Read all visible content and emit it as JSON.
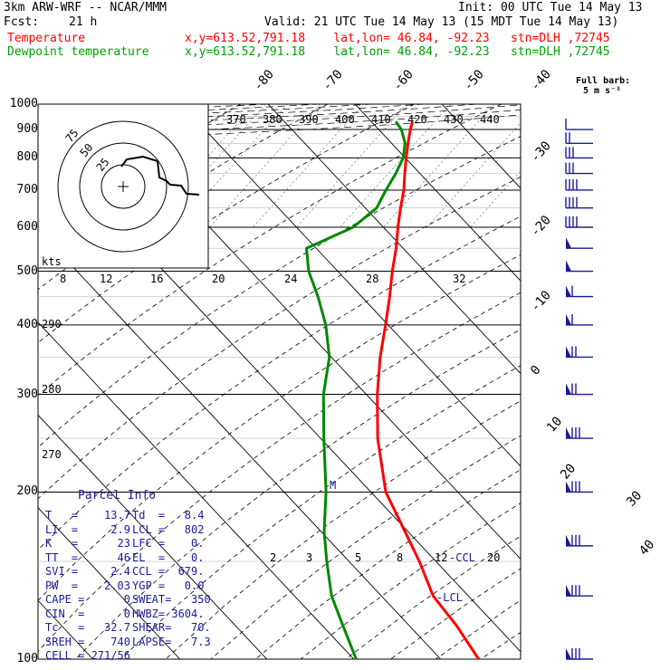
{
  "header": {
    "line1_left": "3km ARW-WRF -- NCAR/MMM",
    "line1_right": "Init: 00 UTC Tue 14 May 13",
    "fcst_label": "Fcst:",
    "fcst_value": "21 h",
    "valid": "Valid: 21 UTC Tue 14 May 13 (15 MDT Tue 14 May 13)",
    "temp_label": "Temperature",
    "dew_label": "Dewpoint temperature",
    "location": "x,y=613.52,791.18    lat,lon= 46.84, -92.23   stn=DLH ,72745"
  },
  "colors": {
    "temperature": "#ff0000",
    "dewpoint": "#008800",
    "parcel_text": "#1a1a99",
    "barbs": "#1a1a99",
    "grid": "#000000"
  },
  "pressure_labels": [
    "100",
    "200",
    "300",
    "400",
    "500",
    "600",
    "700",
    "800",
    "900",
    "1000"
  ],
  "isotherm_labels": [
    "-80",
    "-70",
    "-60",
    "-50",
    "-40",
    "-30",
    "-20",
    "-10",
    "0",
    "10",
    "20",
    "30",
    "40"
  ],
  "theta_labels": [
    "370",
    "380",
    "390",
    "400",
    "410",
    "420",
    "430",
    "440"
  ],
  "theta_low_labels": [
    "290",
    "280",
    "270"
  ],
  "mixing_ratio_top": [
    "8",
    "12",
    "16",
    "20",
    "24",
    "28",
    "32"
  ],
  "mixing_ratio_low": [
    "2",
    "3",
    "5",
    "8",
    "12",
    "20"
  ],
  "annotations": {
    "kts": "kts",
    "full_barb_1": "Full barb:",
    "full_barb_2": "5 m s⁻¹",
    "hodo_rings": [
      "75",
      "50",
      "25"
    ],
    "ccl_tag": "-CCL",
    "lcl_tag": "-LCL",
    "m_tag": "M"
  },
  "parcel_info": {
    "title": "Parcel Info",
    "rows": [
      [
        "T   =    13.7",
        "Td  =   8.4"
      ],
      [
        "LI  =     2.9",
        "LCL =   802"
      ],
      [
        "K   =      23",
        "LFC =    0."
      ],
      [
        "TT  =      46",
        "EL  =    0."
      ],
      [
        "SVI =     2.4",
        "CCL =  679."
      ],
      [
        "PW  =    2.03",
        "YGP =   0.0"
      ],
      [
        "CAPE =      0",
        "SWEAT=   350"
      ],
      [
        "CIN  =      0",
        "HWBZ= 3604."
      ],
      [
        "Tc   =   32.7",
        "SHEAR=   70."
      ],
      [
        "SREH =    740",
        "LAPSE=   7.3"
      ],
      [
        "CELL = 271/56",
        ""
      ]
    ]
  },
  "chart_data": {
    "type": "line",
    "title": "",
    "xlabel": "",
    "ylabel": "",
    "y_scale": "log-pressure (hPa), skew-T",
    "ylim": [
      1000,
      100
    ],
    "series": [
      {
        "name": "Temperature",
        "points": [
          {
            "p": 930,
            "t": 14
          },
          {
            "p": 900,
            "t": 12
          },
          {
            "p": 850,
            "t": 9
          },
          {
            "p": 800,
            "t": 6
          },
          {
            "p": 750,
            "t": 3
          },
          {
            "p": 700,
            "t": 0
          },
          {
            "p": 650,
            "t": -4
          },
          {
            "p": 600,
            "t": -8
          },
          {
            "p": 550,
            "t": -12
          },
          {
            "p": 500,
            "t": -17
          },
          {
            "p": 450,
            "t": -22
          },
          {
            "p": 400,
            "t": -28
          },
          {
            "p": 350,
            "t": -35
          },
          {
            "p": 300,
            "t": -42
          },
          {
            "p": 250,
            "t": -49
          },
          {
            "p": 200,
            "t": -55
          },
          {
            "p": 170,
            "t": -55
          },
          {
            "p": 150,
            "t": -55
          },
          {
            "p": 130,
            "t": -56
          },
          {
            "p": 115,
            "t": -53
          },
          {
            "p": 100,
            "t": -51
          }
        ]
      },
      {
        "name": "Dewpoint temperature",
        "points": [
          {
            "p": 930,
            "t": 8.4
          },
          {
            "p": 900,
            "t": 9
          },
          {
            "p": 850,
            "t": 8
          },
          {
            "p": 800,
            "t": 5
          },
          {
            "p": 750,
            "t": 0
          },
          {
            "p": 700,
            "t": -6
          },
          {
            "p": 650,
            "t": -12
          },
          {
            "p": 600,
            "t": -23
          },
          {
            "p": 550,
            "t": -42
          },
          {
            "p": 500,
            "t": -45
          },
          {
            "p": 450,
            "t": -46
          },
          {
            "p": 400,
            "t": -48
          },
          {
            "p": 350,
            "t": -52
          },
          {
            "p": 300,
            "t": -60
          },
          {
            "p": 250,
            "t": -67
          },
          {
            "p": 200,
            "t": -75
          },
          {
            "p": 170,
            "t": -82
          },
          {
            "p": 150,
            "t": -86
          },
          {
            "p": 130,
            "t": -90
          },
          {
            "p": 115,
            "t": -91
          },
          {
            "p": 100,
            "t": -92
          }
        ]
      }
    ],
    "wind_barbs": [
      {
        "p": 100,
        "spd_ms": 40,
        "dir": 270
      },
      {
        "p": 130,
        "spd_ms": 40,
        "dir": 270
      },
      {
        "p": 160,
        "spd_ms": 40,
        "dir": 270
      },
      {
        "p": 200,
        "spd_ms": 40,
        "dir": 270
      },
      {
        "p": 250,
        "spd_ms": 40,
        "dir": 270
      },
      {
        "p": 300,
        "spd_ms": 35,
        "dir": 270
      },
      {
        "p": 350,
        "spd_ms": 35,
        "dir": 270
      },
      {
        "p": 400,
        "spd_ms": 30,
        "dir": 270
      },
      {
        "p": 450,
        "spd_ms": 30,
        "dir": 270
      },
      {
        "p": 500,
        "spd_ms": 25,
        "dir": 270
      },
      {
        "p": 550,
        "spd_ms": 25,
        "dir": 260
      },
      {
        "p": 600,
        "spd_ms": 20,
        "dir": 250
      },
      {
        "p": 650,
        "spd_ms": 20,
        "dir": 240
      },
      {
        "p": 700,
        "spd_ms": 20,
        "dir": 220
      },
      {
        "p": 750,
        "spd_ms": 15,
        "dir": 210
      },
      {
        "p": 800,
        "spd_ms": 15,
        "dir": 200
      },
      {
        "p": 850,
        "spd_ms": 10,
        "dir": 190
      },
      {
        "p": 900,
        "spd_ms": 5,
        "dir": 180
      }
    ]
  }
}
